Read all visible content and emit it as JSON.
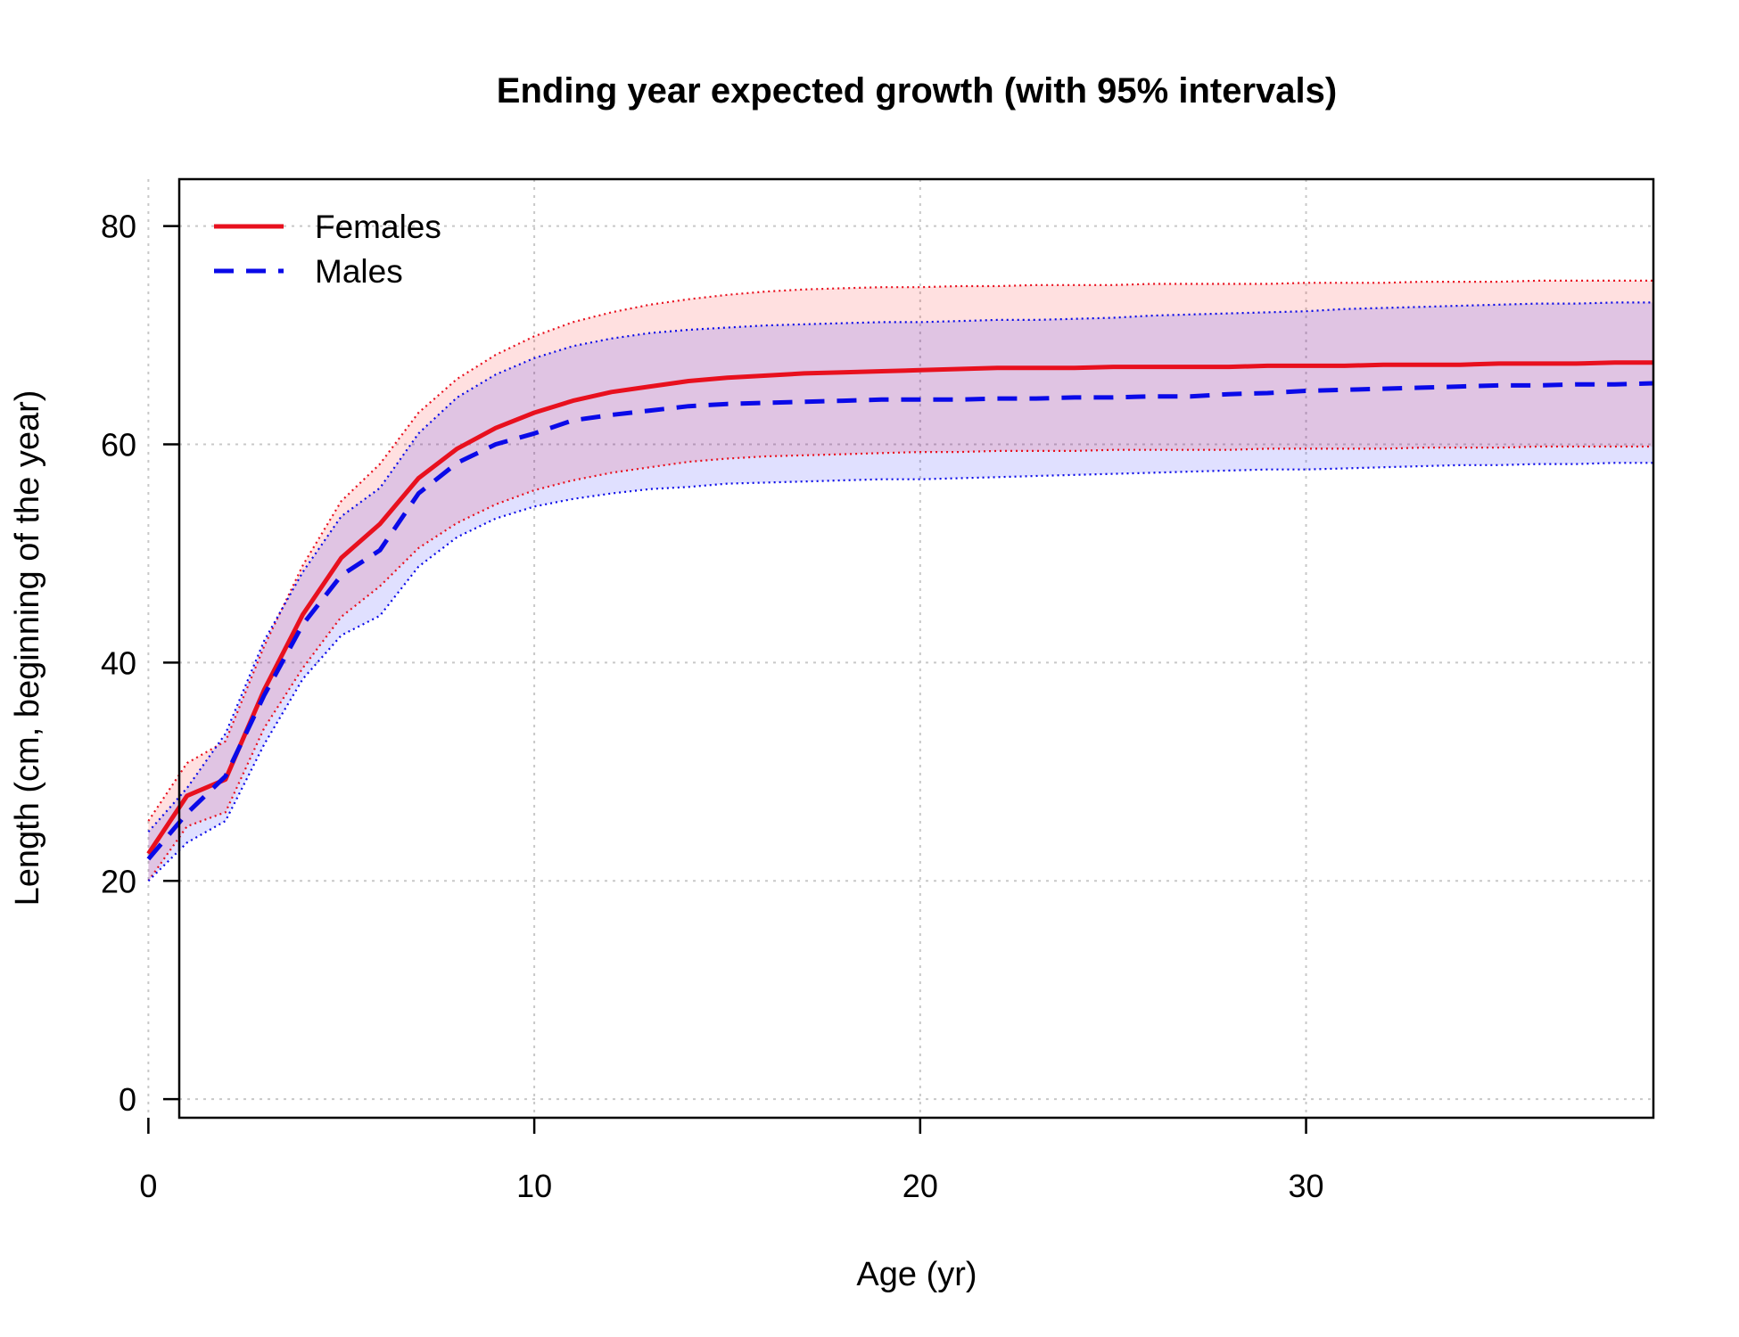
{
  "chart_data": {
    "type": "line",
    "title": "Ending year expected growth (with 95% intervals)",
    "xlabel": "Age (yr)",
    "ylabel": "Length (cm, beginning of the year)",
    "xlim": [
      0,
      39
    ],
    "ylim": [
      0,
      84
    ],
    "xticks": [
      0,
      10,
      20,
      30
    ],
    "yticks": [
      0,
      20,
      40,
      60,
      80
    ],
    "grid": true,
    "legend_position": "top-left",
    "x": [
      0,
      1,
      2,
      3,
      4,
      5,
      6,
      7,
      8,
      9,
      10,
      11,
      12,
      13,
      14,
      15,
      16,
      17,
      18,
      19,
      20,
      21,
      22,
      23,
      24,
      25,
      26,
      27,
      28,
      29,
      30,
      31,
      32,
      33,
      34,
      35,
      36,
      37,
      38,
      39
    ],
    "series": [
      {
        "name": "Females",
        "color": "#e8101e",
        "fill": "rgba(255,0,0,0.12)",
        "line_style": "solid",
        "values": [
          22.5,
          27.8,
          29.3,
          37.5,
          44.4,
          49.6,
          52.7,
          56.9,
          59.6,
          61.5,
          62.9,
          64.0,
          64.8,
          65.3,
          65.8,
          66.1,
          66.3,
          66.5,
          66.6,
          66.7,
          66.8,
          66.9,
          67.0,
          67.0,
          67.0,
          67.1,
          67.1,
          67.1,
          67.1,
          67.2,
          67.2,
          67.2,
          67.3,
          67.3,
          67.3,
          67.4,
          67.4,
          67.4,
          67.5,
          67.5
        ],
        "upper": [
          25.5,
          30.8,
          32.8,
          41.5,
          48.9,
          54.8,
          58.2,
          62.9,
          66.0,
          68.2,
          69.9,
          71.2,
          72.1,
          72.8,
          73.3,
          73.7,
          74.0,
          74.2,
          74.3,
          74.4,
          74.4,
          74.5,
          74.5,
          74.6,
          74.6,
          74.6,
          74.7,
          74.7,
          74.7,
          74.7,
          74.8,
          74.8,
          74.8,
          74.9,
          74.9,
          74.9,
          75.0,
          75.0,
          75.0,
          75.0
        ],
        "lower": [
          20.0,
          25.0,
          26.3,
          34.0,
          39.5,
          44.2,
          47.0,
          50.5,
          52.8,
          54.5,
          55.8,
          56.7,
          57.4,
          57.9,
          58.4,
          58.7,
          58.9,
          59.0,
          59.1,
          59.2,
          59.3,
          59.3,
          59.4,
          59.4,
          59.4,
          59.5,
          59.5,
          59.5,
          59.5,
          59.6,
          59.6,
          59.6,
          59.6,
          59.7,
          59.7,
          59.7,
          59.8,
          59.8,
          59.8,
          59.8
        ]
      },
      {
        "name": "Males",
        "color": "#0a0ae8",
        "fill": "rgba(0,0,255,0.12)",
        "line_style": "dashed",
        "values": [
          22.0,
          26.2,
          29.6,
          37.0,
          43.5,
          48.0,
          50.3,
          55.5,
          58.3,
          60.0,
          61.0,
          62.2,
          62.7,
          63.1,
          63.5,
          63.7,
          63.8,
          63.9,
          64.0,
          64.1,
          64.1,
          64.1,
          64.2,
          64.2,
          64.3,
          64.3,
          64.4,
          64.4,
          64.6,
          64.7,
          64.9,
          65.0,
          65.1,
          65.2,
          65.3,
          65.4,
          65.4,
          65.5,
          65.5,
          65.6
        ],
        "upper": [
          24.5,
          28.5,
          33.5,
          42.0,
          48.3,
          53.4,
          56.0,
          61.0,
          64.3,
          66.4,
          67.9,
          69.0,
          69.7,
          70.2,
          70.5,
          70.7,
          70.9,
          71.0,
          71.1,
          71.2,
          71.2,
          71.3,
          71.4,
          71.4,
          71.5,
          71.6,
          71.8,
          71.9,
          72.0,
          72.1,
          72.2,
          72.4,
          72.5,
          72.6,
          72.7,
          72.8,
          72.9,
          72.9,
          73.0,
          73.0
        ],
        "lower": [
          20.0,
          23.5,
          25.5,
          32.5,
          38.5,
          42.5,
          44.3,
          48.8,
          51.5,
          53.2,
          54.3,
          55.0,
          55.5,
          55.9,
          56.1,
          56.4,
          56.5,
          56.6,
          56.7,
          56.8,
          56.8,
          56.9,
          57.0,
          57.1,
          57.2,
          57.3,
          57.4,
          57.5,
          57.6,
          57.7,
          57.7,
          57.8,
          57.9,
          58.0,
          58.1,
          58.1,
          58.2,
          58.2,
          58.3,
          58.3
        ]
      }
    ]
  }
}
